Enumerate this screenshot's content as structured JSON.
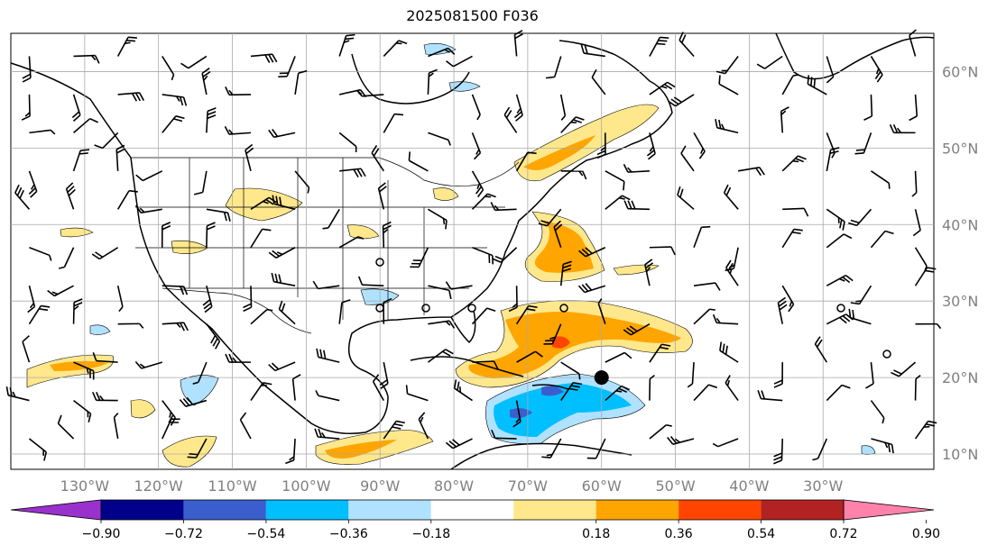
{
  "title": "2025081500 F036",
  "map": {
    "projection": "PlateCarree",
    "lon_range": [
      -140,
      -15
    ],
    "lat_range": [
      8,
      65
    ],
    "lat_labels": [
      "60°N",
      "50°N",
      "40°N",
      "30°N",
      "20°N",
      "10°N"
    ],
    "lon_labels": [
      "130°W",
      "120°W",
      "110°W",
      "100°W",
      "90°W",
      "80°W",
      "70°W",
      "60°W",
      "50°W",
      "40°W",
      "30°W"
    ],
    "gridlines": true,
    "marker": {
      "label": "storm-center",
      "lon": -60,
      "lat": 20
    }
  },
  "colorbar": {
    "tick_labels": [
      "−0.90",
      "−0.72",
      "−0.54",
      "−0.36",
      "−0.18",
      "0.18",
      "0.36",
      "0.54",
      "0.72",
      "0.90"
    ],
    "colors": [
      "#9932cc",
      "#00008b",
      "#3a5fcd",
      "#00bfff",
      "#b0e2ff",
      "#ffffff",
      "#ffe88c",
      "#ffa500",
      "#ff4500",
      "#b22222",
      "#ff82ab"
    ],
    "extend": "both"
  },
  "colors": {
    "land_line": "#000000",
    "grid": "#a9a9a9",
    "label_gray": "#808080"
  }
}
